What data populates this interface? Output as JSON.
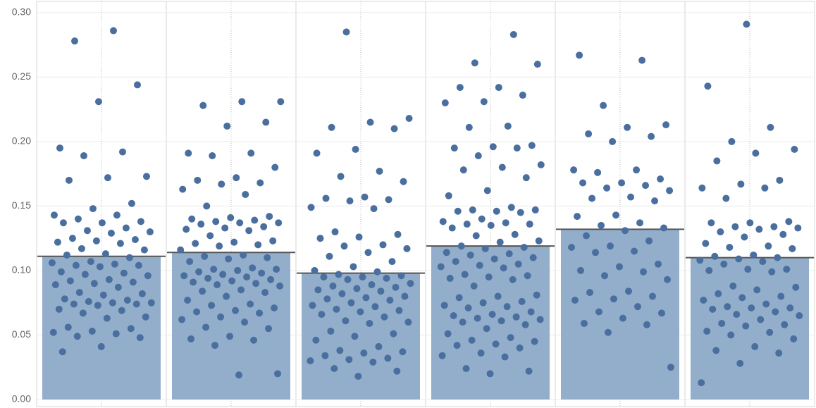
{
  "chart_data": {
    "type": "bar_jitter",
    "ylim": [
      -0.0055,
      0.3087
    ],
    "yticks": [
      {
        "value": 0,
        "label": "0.00"
      },
      0.05,
      {
        "value": 0.1,
        "label": "0.10"
      },
      0.15,
      {
        "value": 0.2,
        "label": "0.20"
      },
      0.25,
      {
        "value": 0.3,
        "label": "0.30"
      }
    ],
    "grid": true,
    "bar_color": "#92aecb",
    "point_color": "#4a6f9f",
    "mean_line_color": "#555555",
    "groups": [
      {
        "mean": 0.111,
        "points": [
          0.286,
          0.278,
          0.244,
          0.231,
          0.195,
          0.192,
          0.189,
          0.173,
          0.172,
          0.17,
          0.152,
          0.148,
          0.143,
          0.143,
          0.14,
          0.138,
          0.137,
          0.137,
          0.133,
          0.131,
          0.13,
          0.129,
          0.125,
          0.124,
          0.123,
          0.122,
          0.121,
          0.117,
          0.116,
          0.113,
          0.112,
          0.11,
          0.107,
          0.106,
          0.105,
          0.104,
          0.104,
          0.103,
          0.099,
          0.098,
          0.097,
          0.096,
          0.093,
          0.092,
          0.091,
          0.09,
          0.089,
          0.087,
          0.083,
          0.082,
          0.081,
          0.078,
          0.077,
          0.076,
          0.075,
          0.075,
          0.074,
          0.074,
          0.073,
          0.07,
          0.069,
          0.067,
          0.064,
          0.063,
          0.056,
          0.055,
          0.053,
          0.052,
          0.051,
          0.049,
          0.048,
          0.041,
          0.037
        ]
      },
      {
        "mean": 0.114,
        "points": [
          0.231,
          0.231,
          0.228,
          0.215,
          0.212,
          0.191,
          0.191,
          0.189,
          0.18,
          0.172,
          0.17,
          0.168,
          0.167,
          0.163,
          0.159,
          0.15,
          0.142,
          0.141,
          0.14,
          0.139,
          0.138,
          0.137,
          0.137,
          0.136,
          0.134,
          0.133,
          0.132,
          0.131,
          0.127,
          0.123,
          0.122,
          0.121,
          0.12,
          0.119,
          0.116,
          0.112,
          0.111,
          0.11,
          0.109,
          0.107,
          0.102,
          0.101,
          0.101,
          0.1,
          0.099,
          0.098,
          0.097,
          0.096,
          0.095,
          0.094,
          0.093,
          0.092,
          0.091,
          0.09,
          0.089,
          0.088,
          0.085,
          0.084,
          0.083,
          0.08,
          0.077,
          0.074,
          0.073,
          0.071,
          0.069,
          0.068,
          0.067,
          0.064,
          0.062,
          0.06,
          0.056,
          0.055,
          0.049,
          0.047,
          0.046,
          0.042,
          0.02,
          0.019
        ]
      },
      {
        "mean": 0.098,
        "points": [
          0.285,
          0.218,
          0.215,
          0.211,
          0.21,
          0.194,
          0.191,
          0.177,
          0.173,
          0.169,
          0.157,
          0.156,
          0.155,
          0.154,
          0.149,
          0.148,
          0.13,
          0.128,
          0.126,
          0.125,
          0.12,
          0.119,
          0.117,
          0.114,
          0.111,
          0.107,
          0.103,
          0.1,
          0.099,
          0.097,
          0.096,
          0.095,
          0.095,
          0.094,
          0.093,
          0.09,
          0.089,
          0.088,
          0.087,
          0.086,
          0.085,
          0.084,
          0.082,
          0.08,
          0.079,
          0.078,
          0.077,
          0.075,
          0.073,
          0.072,
          0.07,
          0.069,
          0.068,
          0.066,
          0.064,
          0.061,
          0.06,
          0.059,
          0.053,
          0.051,
          0.049,
          0.046,
          0.041,
          0.038,
          0.037,
          0.036,
          0.034,
          0.032,
          0.031,
          0.03,
          0.029,
          0.024,
          0.022,
          0.018
        ]
      },
      {
        "mean": 0.119,
        "points": [
          0.283,
          0.261,
          0.26,
          0.242,
          0.242,
          0.236,
          0.231,
          0.23,
          0.212,
          0.211,
          0.197,
          0.196,
          0.195,
          0.195,
          0.189,
          0.182,
          0.18,
          0.178,
          0.172,
          0.162,
          0.158,
          0.149,
          0.147,
          0.147,
          0.146,
          0.146,
          0.145,
          0.14,
          0.138,
          0.137,
          0.136,
          0.136,
          0.135,
          0.133,
          0.128,
          0.127,
          0.123,
          0.122,
          0.119,
          0.118,
          0.117,
          0.114,
          0.113,
          0.112,
          0.11,
          0.109,
          0.107,
          0.105,
          0.104,
          0.103,
          0.102,
          0.097,
          0.096,
          0.095,
          0.094,
          0.093,
          0.088,
          0.081,
          0.08,
          0.079,
          0.076,
          0.075,
          0.073,
          0.072,
          0.071,
          0.068,
          0.066,
          0.065,
          0.064,
          0.063,
          0.062,
          0.061,
          0.06,
          0.058,
          0.055,
          0.051,
          0.048,
          0.046,
          0.045,
          0.043,
          0.042,
          0.04,
          0.036,
          0.034,
          0.033,
          0.024,
          0.022,
          0.02
        ]
      },
      {
        "mean": 0.132,
        "points": [
          0.267,
          0.263,
          0.228,
          0.213,
          0.211,
          0.206,
          0.204,
          0.2,
          0.178,
          0.178,
          0.176,
          0.171,
          0.168,
          0.168,
          0.166,
          0.164,
          0.162,
          0.157,
          0.156,
          0.154,
          0.143,
          0.142,
          0.137,
          0.135,
          0.133,
          0.131,
          0.127,
          0.123,
          0.119,
          0.118,
          0.115,
          0.114,
          0.105,
          0.103,
          0.1,
          0.099,
          0.096,
          0.093,
          0.084,
          0.083,
          0.08,
          0.078,
          0.077,
          0.072,
          0.068,
          0.067,
          0.063,
          0.059,
          0.058,
          0.052,
          0.025
        ]
      },
      {
        "mean": 0.11,
        "points": [
          0.291,
          0.243,
          0.211,
          0.2,
          0.194,
          0.191,
          0.185,
          0.17,
          0.167,
          0.164,
          0.164,
          0.156,
          0.138,
          0.137,
          0.137,
          0.134,
          0.134,
          0.133,
          0.132,
          0.13,
          0.128,
          0.126,
          0.121,
          0.119,
          0.118,
          0.117,
          0.112,
          0.111,
          0.11,
          0.109,
          0.108,
          0.107,
          0.105,
          0.101,
          0.101,
          0.1,
          0.099,
          0.088,
          0.087,
          0.085,
          0.082,
          0.08,
          0.079,
          0.077,
          0.074,
          0.072,
          0.071,
          0.071,
          0.07,
          0.068,
          0.066,
          0.065,
          0.062,
          0.059,
          0.058,
          0.057,
          0.053,
          0.052,
          0.05,
          0.047,
          0.041,
          0.038,
          0.036,
          0.028,
          0.013
        ]
      }
    ]
  }
}
